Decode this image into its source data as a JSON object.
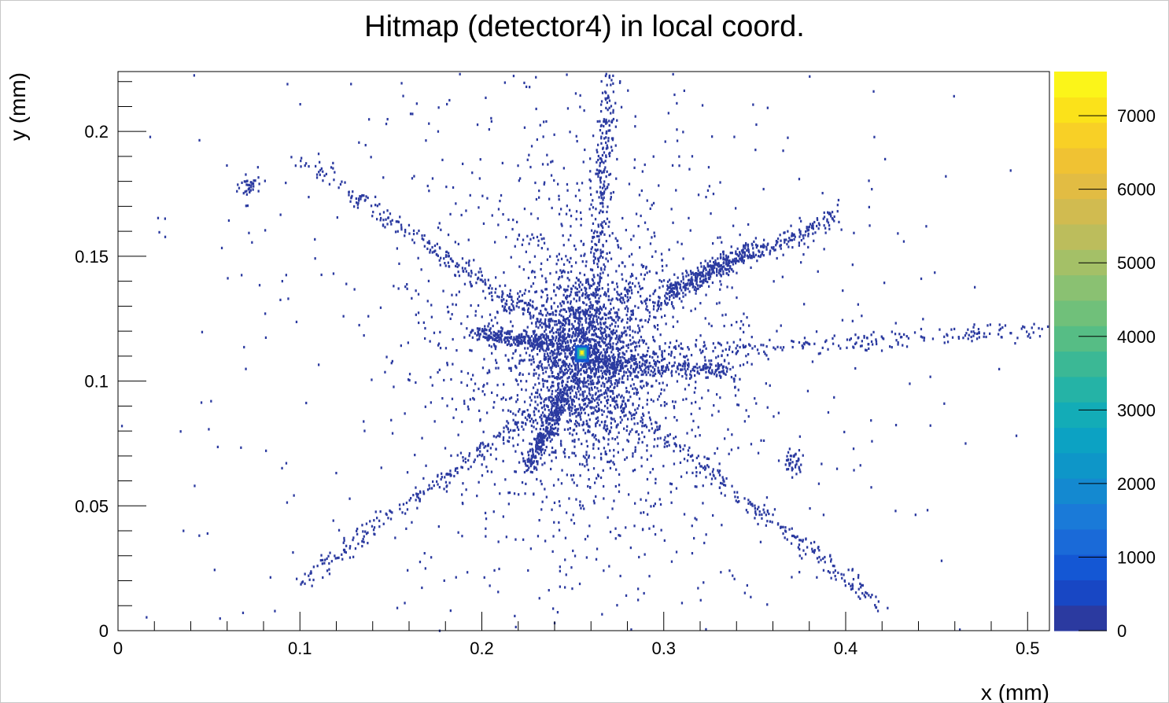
{
  "chart_data": {
    "type": "heatmap",
    "title": "Hitmap (detector4) in local coord.",
    "xlabel": "x (mm)",
    "ylabel": "y (mm)",
    "xlim": [
      0,
      0.512
    ],
    "ylim": [
      0,
      0.224
    ],
    "x_ticks": [
      "0",
      "0.1",
      "0.2",
      "0.3",
      "0.4",
      "0.5"
    ],
    "x_tick_values": [
      0,
      0.1,
      0.2,
      0.3,
      0.4,
      0.5
    ],
    "y_ticks": [
      "0",
      "0.05",
      "0.1",
      "0.15",
      "0.2"
    ],
    "y_tick_values": [
      0,
      0.05,
      0.1,
      0.15,
      0.2
    ],
    "colorbar": {
      "min": 0,
      "max": 7600,
      "ticks": [
        "0",
        "1000",
        "2000",
        "3000",
        "4000",
        "5000",
        "6000",
        "7000"
      ],
      "tick_values": [
        0,
        1000,
        2000,
        3000,
        4000,
        5000,
        6000,
        7000
      ],
      "colors": [
        "#2b3aa0",
        "#1847c4",
        "#1457d4",
        "#1a6ad8",
        "#1a7ad8",
        "#1489d0",
        "#0e96c8",
        "#0ca2c3",
        "#13acb7",
        "#25b3a6",
        "#3bb895",
        "#56bd85",
        "#70c07a",
        "#8ac172",
        "#a4c067",
        "#bcbd5c",
        "#d1bb50",
        "#e2bc43",
        "#f0c233",
        "#f8d026",
        "#fbe21a",
        "#fbf519"
      ]
    },
    "hotspot": {
      "x": 0.255,
      "y": 0.1115,
      "value": 7600
    },
    "features": [
      {
        "kind": "core",
        "x": 0.255,
        "y": 0.11,
        "radius_x": 0.03,
        "radius_y": 0.04
      },
      {
        "kind": "streak",
        "from": [
          0.255,
          0.11
        ],
        "to": [
          0.512,
          0.121
        ]
      },
      {
        "kind": "streak",
        "from": [
          0.26,
          0.108
        ],
        "to": [
          0.335,
          0.105
        ]
      },
      {
        "kind": "streak",
        "from": [
          0.29,
          0.13
        ],
        "to": [
          0.395,
          0.167
        ]
      },
      {
        "kind": "streak",
        "from": [
          0.3,
          0.135
        ],
        "to": [
          0.35,
          0.155
        ]
      },
      {
        "kind": "streak",
        "from": [
          0.25,
          0.115
        ],
        "to": [
          0.1,
          0.19
        ]
      },
      {
        "kind": "streak",
        "from": [
          0.24,
          0.115
        ],
        "to": [
          0.195,
          0.12
        ]
      },
      {
        "kind": "streak",
        "from": [
          0.25,
          0.1
        ],
        "to": [
          0.1,
          0.02
        ]
      },
      {
        "kind": "streak",
        "from": [
          0.245,
          0.095
        ],
        "to": [
          0.225,
          0.065
        ]
      },
      {
        "kind": "streak",
        "from": [
          0.27,
          0.095
        ],
        "to": [
          0.42,
          0.01
        ]
      },
      {
        "kind": "streak",
        "from": [
          0.26,
          0.12
        ],
        "to": [
          0.27,
          0.224
        ]
      },
      {
        "kind": "cluster",
        "x": 0.072,
        "y": 0.178
      },
      {
        "kind": "cluster",
        "x": 0.37,
        "y": 0.068
      }
    ]
  }
}
